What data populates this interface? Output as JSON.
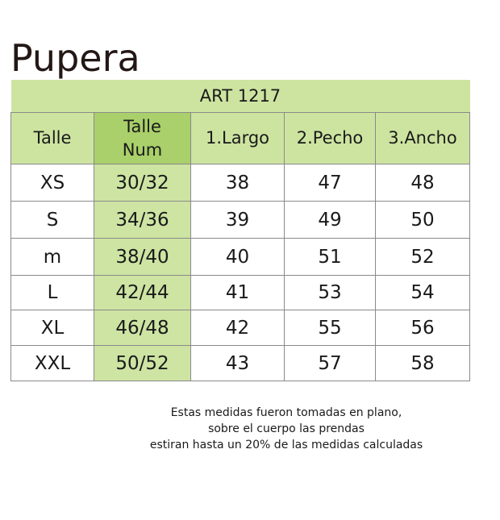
{
  "title": "Pupera",
  "table": {
    "art": "ART 1217",
    "headers": [
      "Talle",
      "Talle\nNum",
      "1.Largo",
      "2.Pecho",
      "3.Ancho"
    ],
    "rows": [
      [
        "XS",
        "30/32",
        "38",
        "47",
        "48"
      ],
      [
        "S",
        "34/36",
        "39",
        "49",
        "50"
      ],
      [
        "m",
        "38/40",
        "40",
        "51",
        "52"
      ],
      [
        "L",
        "42/44",
        "41",
        "53",
        "54"
      ],
      [
        "XL",
        "46/48",
        "42",
        "55",
        "56"
      ],
      [
        "XXL",
        "50/52",
        "43",
        "57",
        "58"
      ]
    ]
  },
  "notes": [
    "Estas medidas fueron tomadas en plano,",
    "sobre el cuerpo las prendas",
    "estiran hasta un 20% de las medidas calculadas"
  ],
  "colors": {
    "header": "#cde4a0",
    "talle_num_header": "#a9d06a",
    "talle_num_column": "#cde4a3"
  }
}
